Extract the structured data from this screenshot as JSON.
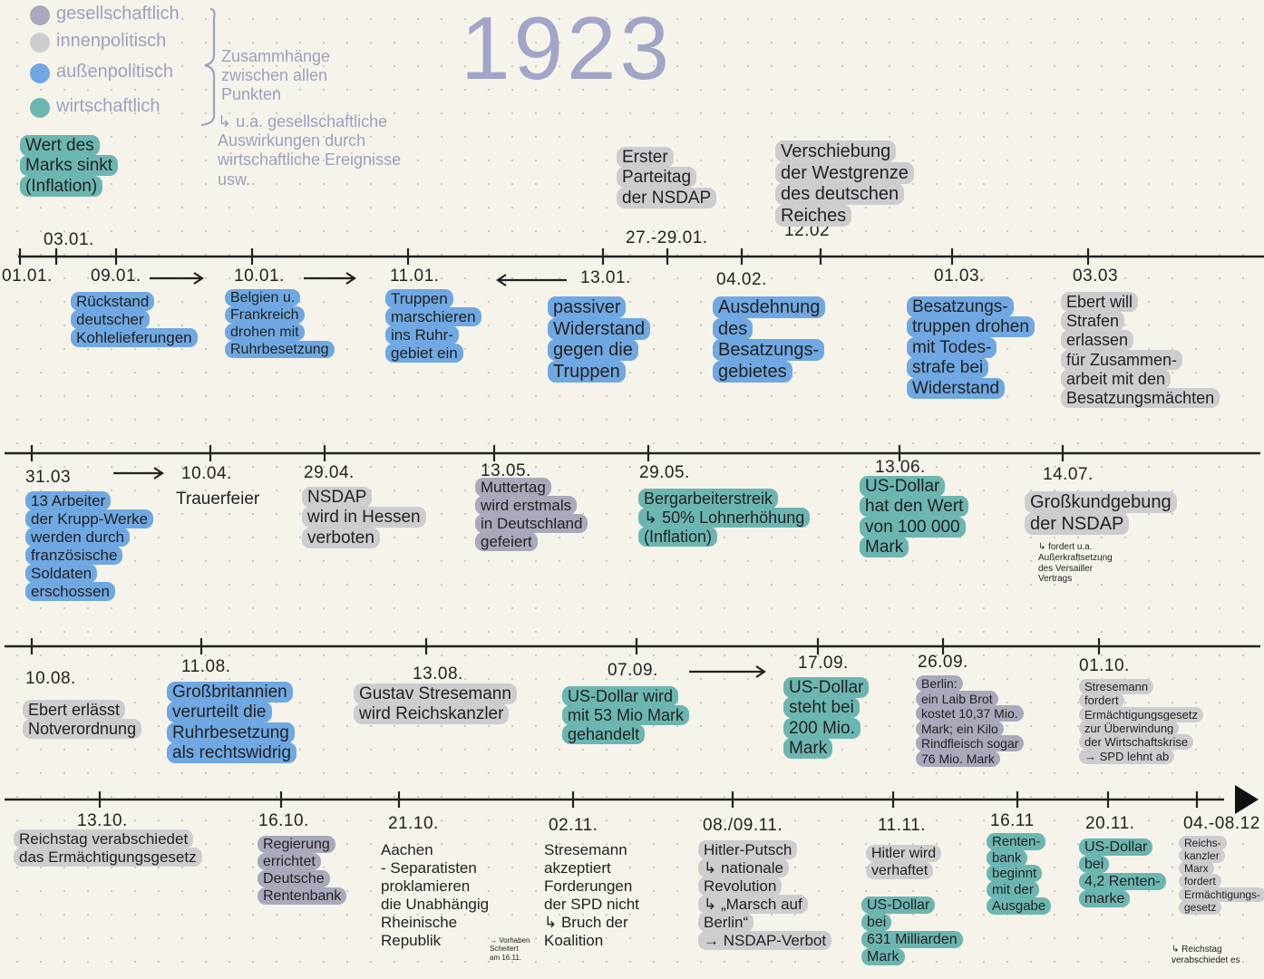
{
  "title": "1923",
  "legend": [
    {
      "label": "gesellschaftlich",
      "color": "#a9a9bc"
    },
    {
      "label": "innenpolitisch",
      "color": "#cdcdd0"
    },
    {
      "label": "außenpolitisch",
      "color": "#6fa8e2"
    },
    {
      "label": "wirtschaftlich",
      "color": "#6cb6b1"
    }
  ],
  "legend_note": "Zusammhänge\nzwischen allen\nPunkten",
  "legend_subnote": "↳ u.a. gesellschaftliche\nAuswirkungen durch\nwirtschaftliche Ereignisse\nusw.",
  "rows": [
    {
      "events": [
        {
          "date": "01.01."
        },
        {
          "date": "03.01.",
          "text": "Wert des\nMarks sinkt\n(Inflation)",
          "color": "#6cb6b1"
        },
        {
          "date": "09.01.",
          "text": "Rückstand\ndeutscher\nKohlelieferungen",
          "color": "#6fa8e2"
        },
        {
          "date": "10.01.",
          "text": "Belgien u.\nFrankreich\ndrohen mit\nRuhrbesetzung",
          "color": "#6fa8e2"
        },
        {
          "date": "11.01.",
          "text": "Truppen\nmarschieren\nins Ruhr-\ngebiet ein",
          "color": "#6fa8e2"
        },
        {
          "date": "13.01.",
          "text": "passiver\nWiderstand\ngegen die\nTruppen",
          "color": "#6fa8e2"
        },
        {
          "date": "27.-29.01.",
          "text": "Erster\nParteitag\nder NSDAP",
          "color": "#cdcdd0"
        },
        {
          "date": "04.02.",
          "text": "Ausdehnung\ndes\nBesatzungs-\ngebietes",
          "color": "#6fa8e2"
        },
        {
          "date": "12.02",
          "text": "Verschiebung\nder Westgrenze\ndes deutschen\nReiches",
          "color": "#cdcdd0"
        },
        {
          "date": "01.03.",
          "text": "Besatzungs-\ntruppen drohen\nmit Todes-\nstrafe bei\nWiderstand",
          "color": "#6fa8e2"
        },
        {
          "date": "03.03",
          "text": "Ebert will\nStrafen\nerlassen\nfür Zusammen-\narbeit mit den\nBesatzungsmächten",
          "color": "#cdcdd0"
        }
      ]
    },
    {
      "events": [
        {
          "date": "31.03",
          "text": "13 Arbeiter\nder Krupp-Werke\nwerden durch\nfranzösische\nSoldaten\nerschossen",
          "color": "#6fa8e2"
        },
        {
          "date": "10.04.",
          "text": "Trauerfeier"
        },
        {
          "date": "29.04.",
          "text": "NSDAP\nwird in Hessen\nverboten",
          "color": "#cdcdd0"
        },
        {
          "date": "13.05.",
          "text": "Muttertag\nwird erstmals\nin Deutschland\ngefeiert",
          "color": "#a9a9bc"
        },
        {
          "date": "29.05.",
          "text": "Bergarbeiterstreik\n↳ 50% Lohnerhöhung\n(Inflation)",
          "color": "#6cb6b1"
        },
        {
          "date": "13.06.",
          "text": "US-Dollar\nhat den Wert\nvon 100 000\nMark",
          "color": "#6cb6b1"
        },
        {
          "date": "14.07.",
          "text": "Großkundgebung\nder NSDAP",
          "color": "#cdcdd0",
          "note": "↳ fordert u.a.\nAußerkraftsetzung\ndes Versailler\nVertrags"
        }
      ]
    },
    {
      "events": [
        {
          "date": "10.08.",
          "text": "Ebert erlässt\nNotverordnung",
          "color": "#cdcdd0"
        },
        {
          "date": "11.08.",
          "text": "Großbritannien\nverurteilt die\nRuhrbesetzung\nals rechtswidrig",
          "color": "#6fa8e2"
        },
        {
          "date": "13.08.",
          "text": "Gustav Stresemann\nwird Reichskanzler",
          "color": "#cdcdd0"
        },
        {
          "date": "07.09.",
          "text": "US-Dollar wird\nmit 53 Mio Mark\ngehandelt",
          "color": "#6cb6b1"
        },
        {
          "date": "17.09.",
          "text": "US-Dollar\nsteht bei\n200 Mio.\nMark",
          "color": "#6cb6b1"
        },
        {
          "date": "26.09.",
          "text": "Berlin:\nein Laib Brot\nkostet 10,37 Mio.\nMark; ein Kilo\nRindfleisch sogar\n76 Mio. Mark",
          "color": "#a9a9bc"
        },
        {
          "date": "01.10.",
          "text": "Stresemann\nfordert\nErmächtigungsgesetz\nzur Überwindung\nder Wirtschaftskrise\n→ SPD lehnt ab",
          "color": "#cdcdd0"
        }
      ]
    },
    {
      "events": [
        {
          "date": "13.10.",
          "text": "Reichstag verabschiedet\ndas Ermächtigungsgesetz",
          "color": "#cdcdd0"
        },
        {
          "date": "16.10.",
          "text": "Regierung\nerrichtet\nDeutsche\nRentenbank",
          "color": "#a9a9bc"
        },
        {
          "date": "21.10.",
          "text": "Aachen\n- Separatisten\nproklamieren\ndie Unabhängig\nRheinische\nRepublik",
          "note": "→ Vorhaben\nScheitert\nam 16.11."
        },
        {
          "date": "02.11.",
          "text": "Stresemann\nakzeptiert\nForderungen\nder SPD nicht\n↳ Bruch der\nKoalition"
        },
        {
          "date": "08./09.11.",
          "text": "Hitler-Putsch\n↳ nationale\nRevolution\n↳ „Marsch auf\nBerlin“\n→ NSDAP-Verbot",
          "color": "#cdcdd0"
        },
        {
          "date": "11.11.",
          "text": "Hitler wird\nverhaftet",
          "color": "#cdcdd0",
          "extra": {
            "text": "US-Dollar\nbei\n631 Milliarden\nMark",
            "color": "#6cb6b1"
          }
        },
        {
          "date": "16.11",
          "text": "Renten-\nbank\nbeginnt\nmit der\nAusgabe",
          "color": "#6cb6b1"
        },
        {
          "date": "20.11.",
          "text": "US-Dollar\nbei\n4,2 Renten-\nmarke",
          "color": "#6cb6b1"
        },
        {
          "date": "04.-08.12",
          "text": "Reichs-\nkanzler\nMarx\nfordert\nErmächtigungs-\ngesetz",
          "color": "#cdcdd0",
          "note": "↳ Reichstag\nverabschiedet es"
        }
      ]
    }
  ]
}
